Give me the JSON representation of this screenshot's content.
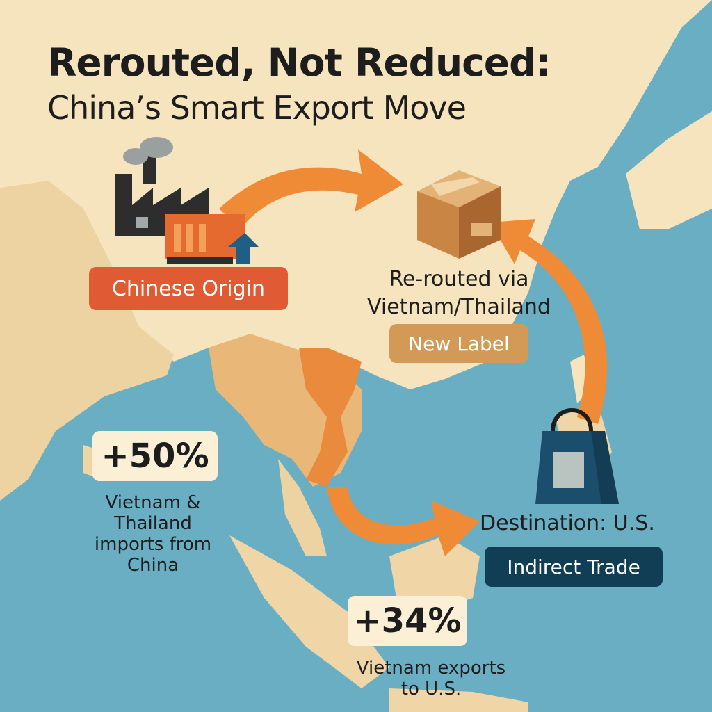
{
  "title": {
    "line1": "Rerouted, Not Reduced:",
    "line2": "China’s Smart Export Move"
  },
  "origin": {
    "label": "Chinese Origin",
    "icon": "factory-icon",
    "color": "#e05a33"
  },
  "reroute": {
    "line1": "Re-routed via",
    "line2": "Vietnam/Thailand",
    "badge": "New Label",
    "icon": "package-box-icon",
    "badge_color": "#d29a56"
  },
  "stats": [
    {
      "value": "+50%",
      "caption_lines": [
        "Vietnam &",
        "Thailand",
        "imports from",
        "China"
      ]
    },
    {
      "value": "+34%",
      "caption_lines": [
        "Vietnam exports",
        "to U.S."
      ]
    }
  ],
  "destination": {
    "label": "Destination: U.S.",
    "badge": "Indirect Trade",
    "icon": "shopping-bag-icon",
    "badge_color": "#0f3e55"
  },
  "colors": {
    "sea": "#6aaec3",
    "land": "#f6e4be",
    "arrow": "#ef8b36"
  }
}
